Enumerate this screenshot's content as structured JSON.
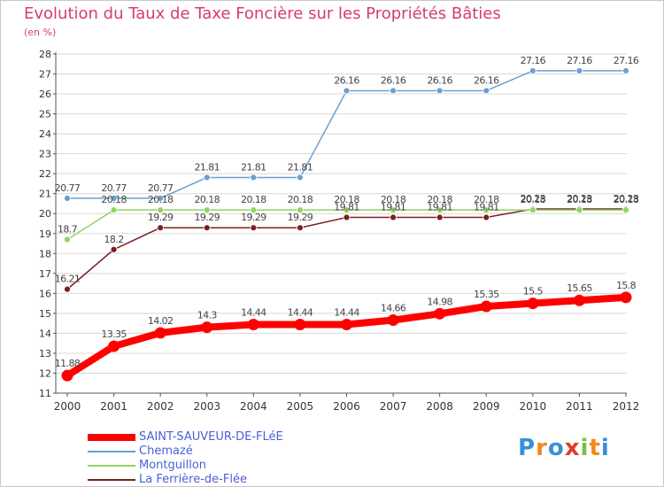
{
  "title": "Evolution du Taux de Taxe Foncière sur les Propriétés Bâties",
  "subtitle": "(en %)",
  "logo_text": "Proxiti",
  "colors": {
    "title": "#d43c6e",
    "legend_text": "#4b5fd6",
    "grid": "#d8d8d8",
    "axis": "#555555",
    "tick_text": "#333333",
    "label_text": "#444444"
  },
  "chart_data": {
    "type": "line",
    "x": [
      "2000",
      "2001",
      "2002",
      "2003",
      "2004",
      "2005",
      "2006",
      "2007",
      "2008",
      "2009",
      "2010",
      "2011",
      "2012"
    ],
    "ylim": [
      11,
      28
    ],
    "yticks": [
      11,
      12,
      13,
      14,
      15,
      16,
      17,
      18,
      19,
      20,
      21,
      22,
      23,
      24,
      25,
      26,
      27,
      28
    ],
    "grid": "horizontal",
    "legend_position": "bottom-left",
    "series": [
      {
        "name": "SAINT-SAUVEUR-DE-FLéE",
        "color": "#ff0000",
        "labels": [
          "11.88",
          "13.35",
          "14.02",
          "14.3",
          "14.44",
          "14.44",
          "14.44",
          "14.66",
          "14.98",
          "15.35",
          "15.5",
          "15.65",
          "15.8"
        ],
        "values": [
          11.88,
          13.35,
          14.02,
          14.3,
          14.44,
          14.44,
          14.44,
          14.66,
          14.98,
          15.35,
          15.5,
          15.65,
          15.8
        ]
      },
      {
        "name": "Chemazé",
        "color": "#6a9fcf",
        "labels": [
          "20.77",
          "20.77",
          "20.77",
          "21.81",
          "21.81",
          "21.81",
          "26.16",
          "26.16",
          "26.16",
          "26.16",
          "27.16",
          "27.16",
          "27.16"
        ],
        "values": [
          20.77,
          20.77,
          20.77,
          21.81,
          21.81,
          21.81,
          26.16,
          26.16,
          26.16,
          26.16,
          27.16,
          27.16,
          27.16
        ]
      },
      {
        "name": "Montguillon",
        "color": "#8fd460",
        "labels": [
          "18.7",
          "20.18",
          "20.18",
          "20.18",
          "20.18",
          "20.18",
          "20.18",
          "20.18",
          "20.18",
          "20.18",
          "20.18",
          "20.18",
          "20.18"
        ],
        "values": [
          18.7,
          20.18,
          20.18,
          20.18,
          20.18,
          20.18,
          20.18,
          20.18,
          20.18,
          20.18,
          20.18,
          20.18,
          20.18
        ]
      },
      {
        "name": "La Ferrière-de-Flée",
        "color": "#7a1f1f",
        "labels": [
          "16.21",
          "18.2",
          "19.29",
          "19.29",
          "19.29",
          "19.29",
          "19.81",
          "19.81",
          "19.81",
          "19.81",
          "20.23",
          "20.23",
          "20.23"
        ],
        "values": [
          16.21,
          18.2,
          19.29,
          19.29,
          19.29,
          19.29,
          19.81,
          19.81,
          19.81,
          19.81,
          20.23,
          20.23,
          20.23
        ]
      }
    ]
  }
}
